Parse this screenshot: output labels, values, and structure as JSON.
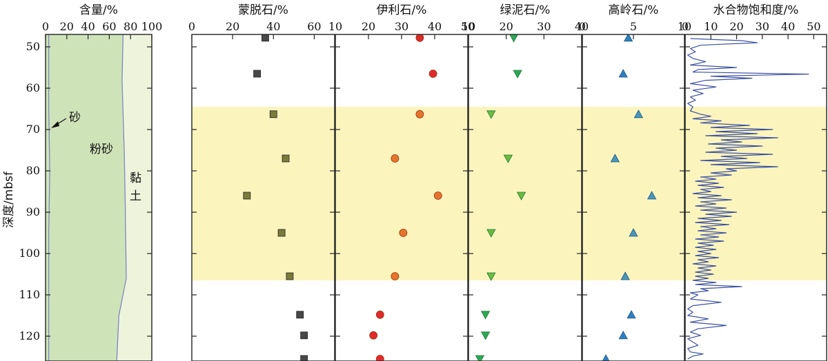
{
  "chart_data": {
    "type": "scatter",
    "y_axis": {
      "label": "深度/mbsf",
      "range": [
        47,
        126
      ],
      "ticks": [
        50,
        60,
        70,
        80,
        90,
        100,
        110,
        120
      ],
      "inverted": true
    },
    "highlight_band": {
      "from": 64.5,
      "to": 106.5,
      "color": "#fbf4bd"
    },
    "panels": [
      {
        "id": "content",
        "title": "含量/%",
        "type": "area",
        "xlim": [
          0,
          100
        ],
        "xticks": [
          0,
          20,
          40,
          60,
          80,
          100
        ],
        "colors": {
          "silt": "#cfe3b9",
          "clay": "#eef4dc",
          "line": "#7b88c2"
        },
        "sand_boundary": [
          [
            3,
            47
          ],
          [
            3,
            65
          ],
          [
            4,
            80
          ],
          [
            3,
            95
          ],
          [
            3,
            126
          ]
        ],
        "silt_boundary": [
          [
            73,
            47
          ],
          [
            72,
            58
          ],
          [
            74,
            75
          ],
          [
            75,
            88
          ],
          [
            76,
            106
          ],
          [
            69,
            115
          ],
          [
            67,
            126
          ]
        ],
        "labels": {
          "sand": "砂",
          "silt": "粉砂",
          "clay_1": "黏",
          "clay_2": "土"
        }
      },
      {
        "id": "smectite",
        "title": "蒙脱石/%",
        "type": "scatter",
        "xlim": [
          0,
          70
        ],
        "xticks": [
          0,
          20,
          40,
          60
        ],
        "marker": "square",
        "points": [
          [
            36,
            47.8
          ],
          [
            32,
            56.5
          ],
          [
            40,
            66.3
          ],
          [
            46,
            77
          ],
          [
            27,
            86
          ],
          [
            44,
            95
          ],
          [
            48,
            105.5
          ],
          [
            53,
            114.8
          ],
          [
            55,
            119.8
          ],
          [
            55,
            125.5
          ]
        ]
      },
      {
        "id": "illite",
        "title": "伊利石/%",
        "type": "scatter",
        "xlim": [
          10,
          50
        ],
        "xticks": [
          10,
          20,
          30,
          40,
          50
        ],
        "marker": "circle",
        "points": [
          [
            35.5,
            47.8
          ],
          [
            39.5,
            56.5
          ],
          [
            35.5,
            66.3
          ],
          [
            28,
            77
          ],
          [
            41,
            86
          ],
          [
            30.5,
            95
          ],
          [
            28,
            105.5
          ],
          [
            23.5,
            114.8
          ],
          [
            21.5,
            119.8
          ],
          [
            23.5,
            125.5
          ]
        ]
      },
      {
        "id": "chlorite",
        "title": "绿泥石/%",
        "type": "scatter",
        "xlim": [
          10,
          40
        ],
        "xticks": [
          10,
          20,
          30,
          40
        ],
        "marker": "triangle-down",
        "points": [
          [
            22,
            47.8
          ],
          [
            23,
            56.5
          ],
          [
            16,
            66.3
          ],
          [
            20.5,
            77
          ],
          [
            24,
            86
          ],
          [
            16,
            95
          ],
          [
            16,
            105.5
          ],
          [
            14.5,
            114.8
          ],
          [
            14.5,
            119.8
          ],
          [
            13,
            125.5
          ]
        ]
      },
      {
        "id": "kaolinite",
        "title": "高岭石/%",
        "type": "scatter",
        "xlim": [
          0,
          10
        ],
        "xticks": [
          0,
          5,
          10
        ],
        "marker": "triangle-up",
        "points": [
          [
            4.5,
            47.8
          ],
          [
            4,
            56.5
          ],
          [
            5.5,
            66.3
          ],
          [
            3.2,
            77
          ],
          [
            6.8,
            86
          ],
          [
            5,
            95
          ],
          [
            4.2,
            105.5
          ],
          [
            4.8,
            114.8
          ],
          [
            4,
            119.8
          ],
          [
            2.3,
            125.5
          ]
        ]
      },
      {
        "id": "hydrate",
        "title": "水合物饱和度/%",
        "type": "line",
        "xlim": [
          0,
          55
        ],
        "xticks": [
          0,
          10,
          20,
          30,
          40,
          50
        ],
        "color": "#3b4fa0",
        "points": [
          [
            2,
            48
          ],
          [
            22,
            48.5
          ],
          [
            28,
            49
          ],
          [
            6,
            49.6
          ],
          [
            2,
            50.4
          ],
          [
            4,
            51.2
          ],
          [
            1,
            52
          ],
          [
            3,
            52.8
          ],
          [
            8,
            53.6
          ],
          [
            2,
            54.4
          ],
          [
            20,
            55
          ],
          [
            5,
            55.5
          ],
          [
            3,
            56.1
          ],
          [
            48,
            56.6
          ],
          [
            10,
            57.1
          ],
          [
            26,
            57.6
          ],
          [
            8,
            58.1
          ],
          [
            2,
            58.9
          ],
          [
            12,
            59.7
          ],
          [
            3,
            60.5
          ],
          [
            7,
            61.3
          ],
          [
            2,
            62.1
          ],
          [
            4,
            62.9
          ],
          [
            1,
            63.7
          ],
          [
            3,
            64.5
          ],
          [
            2,
            65.5
          ],
          [
            6,
            66.3
          ],
          [
            10,
            66.8
          ],
          [
            3,
            67.4
          ],
          [
            14,
            67.9
          ],
          [
            6,
            68.4
          ],
          [
            25,
            69
          ],
          [
            10,
            69.5
          ],
          [
            34,
            70
          ],
          [
            12,
            70.5
          ],
          [
            28,
            71
          ],
          [
            8,
            71.5
          ],
          [
            36,
            72
          ],
          [
            14,
            72.5
          ],
          [
            22,
            73
          ],
          [
            9,
            73.5
          ],
          [
            30,
            74
          ],
          [
            12,
            74.5
          ],
          [
            20,
            75
          ],
          [
            8,
            75.5
          ],
          [
            34,
            76
          ],
          [
            14,
            76.5
          ],
          [
            24,
            77
          ],
          [
            6,
            77.5
          ],
          [
            29,
            78
          ],
          [
            10,
            78.5
          ],
          [
            36,
            79
          ],
          [
            16,
            79.5
          ],
          [
            20,
            80
          ],
          [
            10,
            80.5
          ],
          [
            18,
            81
          ],
          [
            6,
            81.5
          ],
          [
            12,
            82
          ],
          [
            4,
            82.5
          ],
          [
            13,
            83
          ],
          [
            5,
            83.5
          ],
          [
            15,
            84
          ],
          [
            6,
            84.5
          ],
          [
            10,
            85
          ],
          [
            3,
            85.5
          ],
          [
            14,
            86
          ],
          [
            5,
            86.5
          ],
          [
            18,
            87
          ],
          [
            6,
            87.5
          ],
          [
            12,
            88
          ],
          [
            4,
            88.5
          ],
          [
            16,
            89
          ],
          [
            6,
            89.5
          ],
          [
            20,
            90
          ],
          [
            8,
            90.5
          ],
          [
            18,
            91
          ],
          [
            5,
            91.5
          ],
          [
            14,
            92
          ],
          [
            4,
            92.5
          ],
          [
            17,
            93
          ],
          [
            6,
            93.5
          ],
          [
            12,
            94
          ],
          [
            5,
            94.5
          ],
          [
            16,
            95
          ],
          [
            6,
            95.5
          ],
          [
            13,
            96
          ],
          [
            4,
            96.5
          ],
          [
            15,
            97
          ],
          [
            5,
            97.5
          ],
          [
            11,
            98
          ],
          [
            4,
            98.5
          ],
          [
            12,
            99
          ],
          [
            5,
            99.5
          ],
          [
            10,
            100
          ],
          [
            4,
            100.5
          ],
          [
            13,
            101
          ],
          [
            5,
            101.5
          ],
          [
            9,
            102
          ],
          [
            3,
            102.5
          ],
          [
            12,
            103
          ],
          [
            5,
            103.5
          ],
          [
            10,
            104
          ],
          [
            4,
            104.5
          ],
          [
            11,
            105
          ],
          [
            4,
            105.5
          ],
          [
            9,
            106
          ],
          [
            3,
            106.5
          ],
          [
            12,
            107
          ],
          [
            4,
            107.5
          ],
          [
            22,
            108
          ],
          [
            6,
            108.5
          ],
          [
            9,
            109
          ],
          [
            2,
            109.5
          ],
          [
            5,
            110
          ],
          [
            2,
            111
          ],
          [
            14,
            111.8
          ],
          [
            3,
            112.6
          ],
          [
            1,
            113.4
          ],
          [
            3,
            114.2
          ],
          [
            1,
            115
          ],
          [
            9,
            115.8
          ],
          [
            2,
            116.6
          ],
          [
            16,
            117.4
          ],
          [
            5,
            118.2
          ],
          [
            2,
            119
          ],
          [
            6,
            119.8
          ],
          [
            1,
            120.6
          ],
          [
            3,
            121.4
          ],
          [
            5,
            122.2
          ],
          [
            1,
            123
          ],
          [
            2,
            123.8
          ],
          [
            7,
            124.3
          ],
          [
            3,
            124.8
          ],
          [
            1,
            125.5
          ]
        ]
      }
    ]
  }
}
